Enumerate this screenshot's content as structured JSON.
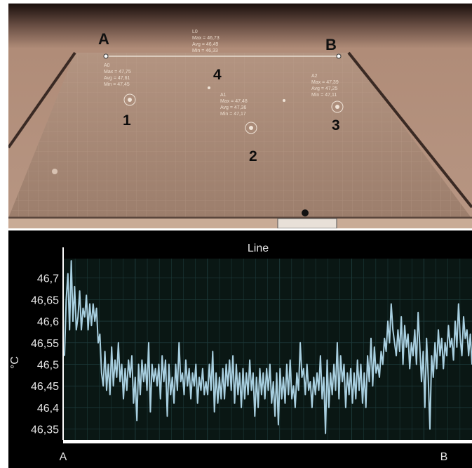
{
  "photo": {
    "corner_a": "A",
    "corner_b": "B",
    "area_numbers": [
      "1",
      "2",
      "3",
      "4"
    ],
    "line_stats": [
      "L0",
      "Max = 46,73",
      "Avg = 46,49",
      "Min = 46,33"
    ],
    "spot_a0": [
      "A0",
      "Max = 47,75",
      "Avg = 47,61",
      "Min = 47,45"
    ],
    "spot_a1": [
      "A1",
      "Max = 47,48",
      "Avg = 47,36",
      "Min = 47,17"
    ],
    "spot_a2": [
      "A2",
      "Max = 47,39",
      "Avg = 47,25",
      "Min = 47,11"
    ]
  },
  "chart_data": {
    "type": "line",
    "title": "Line",
    "ylabel": "°C",
    "x_start_label": "A",
    "x_end_label": "B",
    "y_ticks": [
      "46,7",
      "46,65",
      "46,6",
      "46,55",
      "46,5",
      "46,45",
      "46,4",
      "46,35"
    ],
    "ylim": [
      46.325,
      46.745
    ],
    "grid": true,
    "colors": {
      "line": "#a8cfe0",
      "grid": "#1d3a3a",
      "background": "#000000"
    },
    "series": [
      {
        "values": [
          46.52,
          46.65,
          46.71,
          46.58,
          46.74,
          46.6,
          46.68,
          46.58,
          46.61,
          46.67,
          46.58,
          46.63,
          46.61,
          46.66,
          46.58,
          46.64,
          46.59,
          46.64,
          46.6,
          46.63,
          46.55,
          46.57,
          46.48,
          46.45,
          46.53,
          46.44,
          46.5,
          46.43,
          46.54,
          46.45,
          46.51,
          46.47,
          46.55,
          46.46,
          46.5,
          46.42,
          46.49,
          46.44,
          46.51,
          46.47,
          46.52,
          46.41,
          46.47,
          46.37,
          46.5,
          46.43,
          46.51,
          46.46,
          46.5,
          46.44,
          46.55,
          46.39,
          46.5,
          46.46,
          46.49,
          46.45,
          46.5,
          46.42,
          46.52,
          46.46,
          46.51,
          46.38,
          46.5,
          46.43,
          46.47,
          46.41,
          46.5,
          46.44,
          46.55,
          46.46,
          46.48,
          46.43,
          46.51,
          46.45,
          46.49,
          46.42,
          46.48,
          46.45,
          46.5,
          46.41,
          46.47,
          46.44,
          46.49,
          46.43,
          46.46,
          46.43,
          46.5,
          46.44,
          46.53,
          46.39,
          46.48,
          46.41,
          46.47,
          46.42,
          46.49,
          46.42,
          46.5,
          46.45,
          46.51,
          46.44,
          46.52,
          46.41,
          46.5,
          46.43,
          46.48,
          46.4,
          46.49,
          46.42,
          46.48,
          46.43,
          46.51,
          46.44,
          46.48,
          46.38,
          46.47,
          46.4,
          46.49,
          46.43,
          46.48,
          46.42,
          46.49,
          46.44,
          46.5,
          46.41,
          46.46,
          46.38,
          46.48,
          46.36,
          46.49,
          46.42,
          46.47,
          46.41,
          46.5,
          46.43,
          46.51,
          46.42,
          46.45,
          46.4,
          46.48,
          46.44,
          46.55,
          46.47,
          46.49,
          46.43,
          46.5,
          46.44,
          46.46,
          46.4,
          46.47,
          46.43,
          46.48,
          46.44,
          46.52,
          46.42,
          46.47,
          46.34,
          46.51,
          46.4,
          46.48,
          46.43,
          46.5,
          46.44,
          46.55,
          46.42,
          46.52,
          46.46,
          46.5,
          46.4,
          46.48,
          46.43,
          46.49,
          46.41,
          46.48,
          46.42,
          46.51,
          46.44,
          46.5,
          46.41,
          46.48,
          46.4,
          46.52,
          46.46,
          46.56,
          46.45,
          46.54,
          46.48,
          46.5,
          46.47,
          46.53,
          46.5,
          46.56,
          46.53,
          46.6,
          46.55,
          46.64,
          46.58,
          46.55,
          46.52,
          46.58,
          46.53,
          46.61,
          46.5,
          46.59,
          46.54,
          46.57,
          46.49,
          46.55,
          46.52,
          46.58,
          46.5,
          46.62,
          46.54,
          46.46,
          46.53,
          46.4,
          46.56,
          46.47,
          46.35,
          46.52,
          46.47,
          46.55,
          46.49,
          46.58,
          46.52,
          46.56,
          46.49,
          46.55,
          46.52,
          46.59,
          46.54,
          46.56,
          46.51,
          46.6,
          46.54,
          46.64,
          46.56,
          46.52,
          46.61,
          46.56,
          46.58,
          46.52,
          46.57,
          46.5
        ]
      }
    ]
  }
}
